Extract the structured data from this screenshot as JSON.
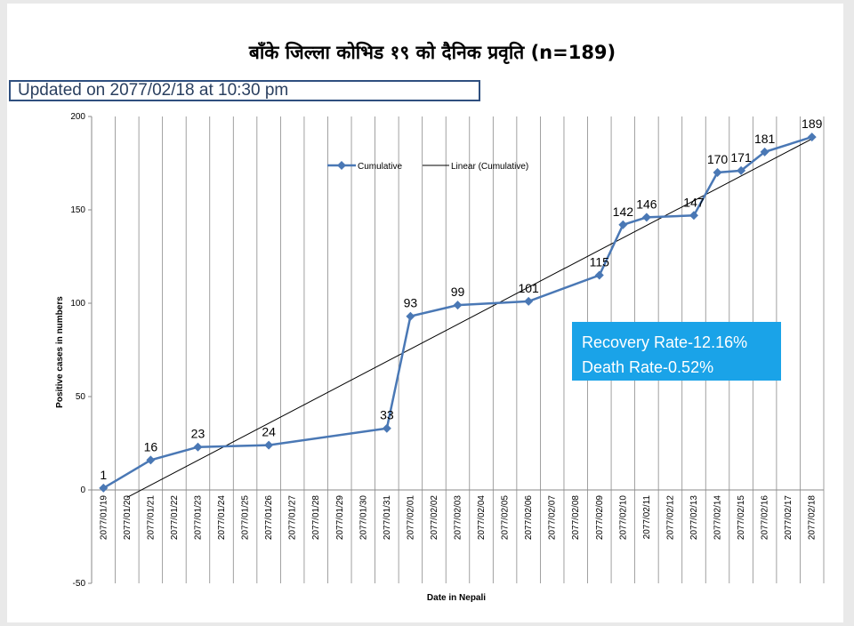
{
  "header": {
    "title": "बाँके जिल्ला कोभिड १९ को दैनिक प्रवृति (n=189)",
    "updated": "Updated on 2077/02/18 at 10:30 pm"
  },
  "rates": {
    "recovery": "Recovery Rate-12.16%",
    "death": "Death Rate-0.52%"
  },
  "colors": {
    "series": "#4a78b5",
    "trend": "#000000",
    "rate_box": "#1aa3e8"
  },
  "chart_data": {
    "type": "line",
    "categories": [
      "2077/01/19",
      "2077/01/20",
      "2077/01/21",
      "2077/01/22",
      "2077/01/23",
      "2077/01/24",
      "2077/01/25",
      "2077/01/26",
      "2077/01/27",
      "2077/01/28",
      "2077/01/29",
      "2077/01/30",
      "2077/01/31",
      "2077/02/01",
      "2077/02/02",
      "2077/02/03",
      "2077/02/04",
      "2077/02/05",
      "2077/02/06",
      "2077/02/07",
      "2077/02/08",
      "2077/02/09",
      "2077/02/10",
      "2077/02/11",
      "2077/02/12",
      "2077/02/13",
      "2077/02/14",
      "2077/02/15",
      "2077/02/16",
      "2077/02/17",
      "2077/02/18"
    ],
    "series": [
      {
        "name": "Cumulative",
        "points": [
          {
            "x": "2077/01/19",
            "y": 1
          },
          {
            "x": "2077/01/21",
            "y": 16
          },
          {
            "x": "2077/01/23",
            "y": 23
          },
          {
            "x": "2077/01/26",
            "y": 24
          },
          {
            "x": "2077/01/31",
            "y": 33
          },
          {
            "x": "2077/02/01",
            "y": 93
          },
          {
            "x": "2077/02/03",
            "y": 99
          },
          {
            "x": "2077/02/06",
            "y": 101
          },
          {
            "x": "2077/02/09",
            "y": 115
          },
          {
            "x": "2077/02/10",
            "y": 142
          },
          {
            "x": "2077/02/11",
            "y": 146
          },
          {
            "x": "2077/02/13",
            "y": 147
          },
          {
            "x": "2077/02/14",
            "y": 170
          },
          {
            "x": "2077/02/15",
            "y": 171
          },
          {
            "x": "2077/02/16",
            "y": 181
          },
          {
            "x": "2077/02/18",
            "y": 189
          }
        ]
      },
      {
        "name": "Linear (Cumulative)",
        "type": "trendline",
        "points": [
          {
            "x": "2077/01/20",
            "y": -4
          },
          {
            "x": "2077/02/18",
            "y": 188
          }
        ]
      }
    ],
    "xlabel": "Date in Nepali",
    "ylabel": "Positive cases in numbers",
    "ylim": [
      -50,
      200
    ],
    "yticks": [
      -50,
      0,
      50,
      100,
      150,
      200
    ],
    "grid": "vertical",
    "legend": "top-center"
  }
}
